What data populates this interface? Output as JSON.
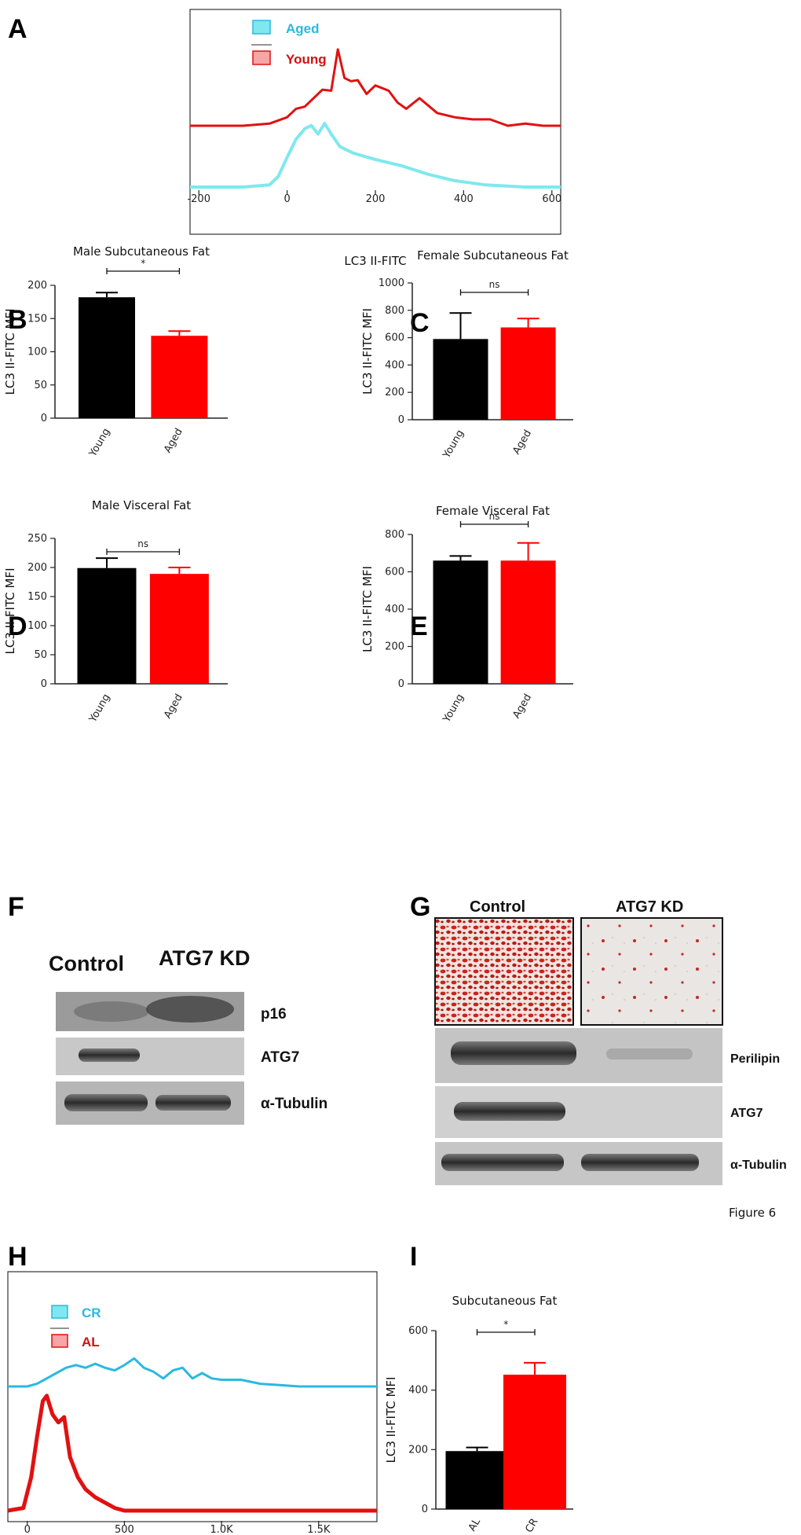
{
  "figure_caption": "Figure 6",
  "colors": {
    "young": "#000000",
    "aged": "#ff0000",
    "cyan": "#7fe8ee",
    "red_line": "#e11111",
    "blot_bg": "#cfcfcf"
  },
  "panels": {
    "A": {
      "label": "A"
    },
    "B": {
      "label": "B"
    },
    "C": {
      "label": "C"
    },
    "D": {
      "label": "D"
    },
    "E": {
      "label": "E"
    },
    "F": {
      "label": "F"
    },
    "G": {
      "label": "G"
    },
    "H": {
      "label": "H"
    },
    "I": {
      "label": "I"
    }
  },
  "blot_F": {
    "headers": [
      "Control",
      "ATG7 KD"
    ],
    "rows": [
      "p16",
      "ATG7",
      "α-Tubulin"
    ]
  },
  "blot_G": {
    "headers": [
      "Control",
      "ATG7 KD"
    ],
    "rows": [
      "Perilipin",
      "ATG7",
      "α-Tubulin"
    ]
  },
  "chart_data": [
    {
      "id": "A",
      "type": "line",
      "title": "",
      "xlabel": "LC3 II-FITC",
      "ylabel": "",
      "xlim": [
        -220,
        620
      ],
      "xticks": [
        -200,
        0,
        200,
        400,
        600
      ],
      "legend": [
        "Aged",
        "Young"
      ],
      "legend_position": "top-left",
      "series": [
        {
          "name": "Young",
          "color": "#e11111",
          "x": [
            -220,
            -100,
            -40,
            0,
            20,
            40,
            60,
            80,
            100,
            115,
            130,
            145,
            160,
            180,
            200,
            230,
            250,
            270,
            300,
            340,
            380,
            420,
            460,
            500,
            540,
            580,
            620
          ],
          "y": [
            0.0,
            0.0,
            0.02,
            0.08,
            0.16,
            0.18,
            0.26,
            0.34,
            0.33,
            0.72,
            0.45,
            0.42,
            0.43,
            0.3,
            0.38,
            0.33,
            0.22,
            0.16,
            0.26,
            0.12,
            0.08,
            0.06,
            0.06,
            0.0,
            0.02,
            0.0,
            0.0
          ]
        },
        {
          "name": "Aged",
          "color": "#7fe8ee",
          "x": [
            -220,
            -100,
            -40,
            -20,
            0,
            20,
            40,
            55,
            70,
            85,
            100,
            120,
            150,
            200,
            260,
            320,
            380,
            450,
            540,
            620
          ],
          "y": [
            0.0,
            0.0,
            0.02,
            0.1,
            0.28,
            0.45,
            0.55,
            0.58,
            0.5,
            0.6,
            0.5,
            0.38,
            0.32,
            0.26,
            0.2,
            0.12,
            0.06,
            0.02,
            0.0,
            0.0
          ]
        }
      ]
    },
    {
      "id": "B",
      "type": "bar",
      "title": "Male Subcutaneous Fat",
      "ylabel": "LC3 II-FITC MFI",
      "categories": [
        "Young",
        "Aged"
      ],
      "values": [
        182,
        124
      ],
      "errors": [
        7,
        7
      ],
      "ylim": [
        0,
        200
      ],
      "yticks": [
        0,
        50,
        100,
        150,
        200
      ],
      "significance": "*"
    },
    {
      "id": "C",
      "type": "bar",
      "title": "Female Subcutaneous Fat",
      "ylabel": "LC3 II-FITC MFI",
      "categories": [
        "Young",
        "Aged"
      ],
      "values": [
        590,
        675
      ],
      "errors": [
        190,
        65
      ],
      "ylim": [
        0,
        1000
      ],
      "yticks": [
        0,
        200,
        400,
        600,
        800,
        1000
      ],
      "significance": "ns"
    },
    {
      "id": "D",
      "type": "bar",
      "title": "Male Visceral Fat",
      "ylabel": "LC3 II-FITC MFI",
      "categories": [
        "Young",
        "Aged"
      ],
      "values": [
        199,
        189
      ],
      "errors": [
        17,
        11
      ],
      "ylim": [
        0,
        250
      ],
      "yticks": [
        0,
        50,
        100,
        150,
        200,
        250
      ],
      "significance": "ns"
    },
    {
      "id": "E",
      "type": "bar",
      "title": "Female Visceral Fat",
      "ylabel": "LC3 II-FITC MFI",
      "categories": [
        "Young",
        "Aged"
      ],
      "values": [
        660,
        660
      ],
      "errors": [
        25,
        95
      ],
      "ylim": [
        0,
        800
      ],
      "yticks": [
        0,
        200,
        400,
        600,
        800
      ],
      "significance": "ns"
    },
    {
      "id": "H",
      "type": "line",
      "title": "",
      "xlabel": "",
      "ylabel": "",
      "xlim": [
        -100,
        1800
      ],
      "xticks": [
        0,
        500,
        1000,
        1500
      ],
      "xticklabels": [
        "0",
        "500",
        "1.0K",
        "1.5K"
      ],
      "legend": [
        "CR",
        "AL"
      ],
      "legend_position": "top-left",
      "series": [
        {
          "name": "CR",
          "color": "#2bb8e0",
          "x": [
            -100,
            0,
            50,
            100,
            150,
            200,
            250,
            300,
            350,
            400,
            450,
            500,
            550,
            600,
            650,
            700,
            750,
            800,
            850,
            900,
            950,
            1000,
            1100,
            1200,
            1300,
            1400,
            1500,
            1600,
            1700,
            1800
          ],
          "y": [
            0.0,
            0.0,
            0.02,
            0.06,
            0.1,
            0.14,
            0.16,
            0.14,
            0.17,
            0.14,
            0.12,
            0.16,
            0.21,
            0.14,
            0.11,
            0.06,
            0.12,
            0.14,
            0.06,
            0.1,
            0.06,
            0.05,
            0.05,
            0.02,
            0.01,
            0.0,
            0.0,
            0.0,
            0.0,
            0.0
          ]
        },
        {
          "name": "AL",
          "color": "#e11111",
          "x": [
            -100,
            -20,
            20,
            50,
            80,
            100,
            130,
            160,
            190,
            220,
            260,
            300,
            350,
            400,
            450,
            500,
            1800
          ],
          "y": [
            0.0,
            0.02,
            0.25,
            0.55,
            0.82,
            0.86,
            0.72,
            0.66,
            0.7,
            0.4,
            0.25,
            0.16,
            0.1,
            0.06,
            0.02,
            0.0,
            0.0
          ]
        }
      ]
    },
    {
      "id": "I",
      "type": "bar",
      "title": "Subcutaneous Fat",
      "ylabel": "LC3 II-FITC MFI",
      "categories": [
        "AL",
        "CR"
      ],
      "values": [
        195,
        452
      ],
      "errors": [
        12,
        40
      ],
      "ylim": [
        0,
        600
      ],
      "yticks": [
        0,
        200,
        400,
        600
      ],
      "significance": "*"
    }
  ]
}
